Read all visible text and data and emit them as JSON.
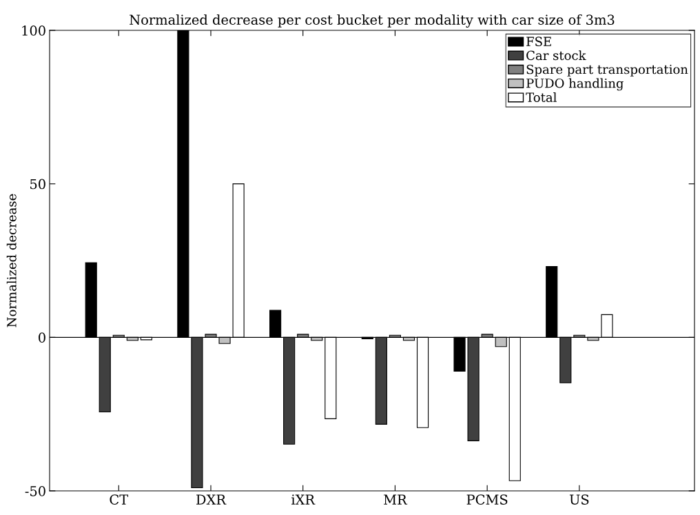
{
  "chart_data": {
    "type": "bar",
    "title": "Normalized decrease per cost bucket per modality with car size of 3m3",
    "ylabel": "Normalized decrease",
    "categories": [
      "CT",
      "DXR",
      "iXR",
      "MR",
      "PCMS",
      "US"
    ],
    "series": [
      {
        "name": "FSE",
        "color": "#000000",
        "values": [
          24.3,
          100,
          8.8,
          -0.5,
          -11,
          23.1
        ]
      },
      {
        "name": "Car stock",
        "color": "#404040",
        "values": [
          -24.3,
          -49,
          -34.8,
          -28.3,
          -33.7,
          -14.8
        ]
      },
      {
        "name": "Spare part transportation",
        "color": "#808080",
        "values": [
          0.7,
          1,
          1,
          0.7,
          1,
          0.7
        ]
      },
      {
        "name": "PUDO handling",
        "color": "#c0c0c0",
        "values": [
          -1,
          -2,
          -1,
          -1,
          -3,
          -1
        ]
      },
      {
        "name": "Total",
        "color": "#ffffff",
        "values": [
          -0.8,
          50,
          -26.5,
          -29.4,
          -46.7,
          7.4
        ]
      }
    ],
    "ylim": [
      -50,
      100
    ],
    "yticks": [
      -50,
      0,
      50,
      100
    ],
    "grid": false,
    "legend": "top right",
    "ref_lines": [
      {
        "axis": "y",
        "value": 0,
        "color": "#000000"
      }
    ]
  }
}
